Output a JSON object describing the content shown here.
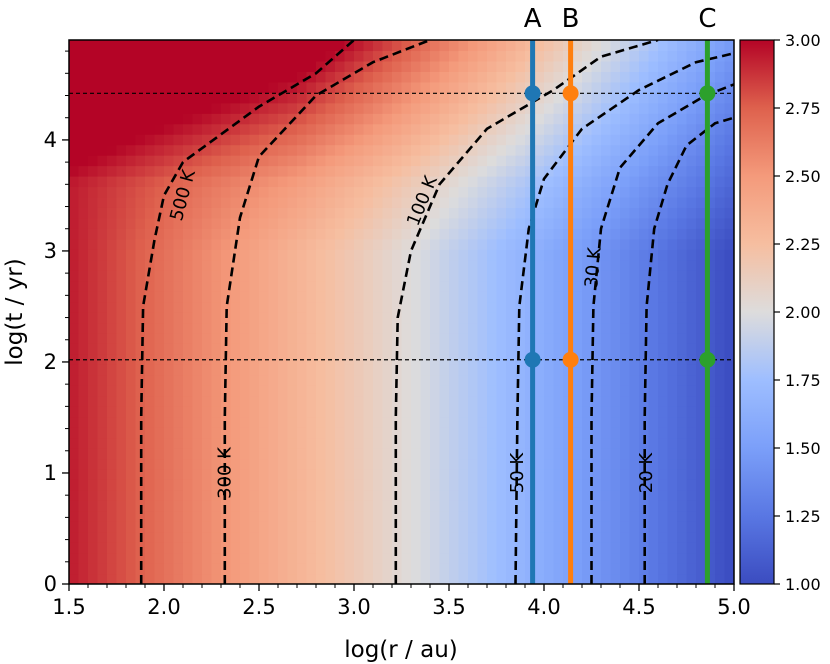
{
  "chart_data": {
    "type": "heatmap",
    "xlabel": "log(r / au)",
    "ylabel": "log(t / yr)",
    "xlim": [
      1.5,
      5.0
    ],
    "ylim": [
      0,
      4.9
    ],
    "x_ticks": [
      "1.5",
      "2.0",
      "2.5",
      "3.0",
      "3.5",
      "4.0",
      "4.5",
      "5.0"
    ],
    "y_ticks": [
      "0",
      "1",
      "2",
      "3",
      "4"
    ],
    "colorbar": {
      "colormap": "coolwarm",
      "range": [
        1.0,
        3.0
      ],
      "ticks": [
        "1.00",
        "1.25",
        "1.50",
        "1.75",
        "2.00",
        "2.25",
        "2.50",
        "2.75",
        "3.00"
      ]
    },
    "contours": [
      {
        "label": "500 K",
        "points": [
          [
            1.88,
            0
          ],
          [
            1.88,
            1.5
          ],
          [
            1.89,
            2.5
          ],
          [
            1.95,
            3.1
          ],
          [
            2.0,
            3.5
          ],
          [
            2.1,
            3.8
          ],
          [
            2.5,
            4.3
          ],
          [
            2.8,
            4.6
          ],
          [
            3.0,
            4.9
          ]
        ]
      },
      {
        "label": "300 K",
        "points": [
          [
            2.32,
            0
          ],
          [
            2.32,
            1.5
          ],
          [
            2.33,
            2.5
          ],
          [
            2.4,
            3.3
          ],
          [
            2.5,
            3.85
          ],
          [
            2.8,
            4.4
          ],
          [
            3.1,
            4.7
          ],
          [
            3.4,
            4.9
          ]
        ]
      },
      {
        "label": "100 K",
        "points": [
          [
            3.22,
            0
          ],
          [
            3.22,
            1.5
          ],
          [
            3.23,
            2.4
          ],
          [
            3.3,
            3.0
          ],
          [
            3.45,
            3.6
          ],
          [
            3.7,
            4.1
          ],
          [
            4.05,
            4.45
          ],
          [
            4.3,
            4.75
          ],
          [
            4.6,
            4.9
          ]
        ]
      },
      {
        "label": "50 K",
        "points": [
          [
            3.85,
            0
          ],
          [
            3.86,
            1.5
          ],
          [
            3.87,
            2.5
          ],
          [
            3.92,
            3.2
          ],
          [
            4.0,
            3.65
          ],
          [
            4.2,
            4.1
          ],
          [
            4.5,
            4.45
          ],
          [
            4.8,
            4.7
          ],
          [
            5.0,
            4.78
          ]
        ]
      },
      {
        "label": "30 K",
        "points": [
          [
            4.25,
            0
          ],
          [
            4.25,
            1.5
          ],
          [
            4.26,
            2.5
          ],
          [
            4.3,
            3.2
          ],
          [
            4.4,
            3.75
          ],
          [
            4.6,
            4.15
          ],
          [
            4.85,
            4.4
          ],
          [
            5.0,
            4.5
          ]
        ]
      },
      {
        "label": "20 K",
        "points": [
          [
            4.53,
            0
          ],
          [
            4.53,
            1.5
          ],
          [
            4.54,
            2.5
          ],
          [
            4.58,
            3.2
          ],
          [
            4.65,
            3.6
          ],
          [
            4.75,
            3.95
          ],
          [
            4.9,
            4.15
          ],
          [
            5.0,
            4.2
          ]
        ]
      }
    ],
    "horizontal_lines": [
      2.02,
      4.42
    ],
    "vertical_lines": [
      {
        "label": "A",
        "x": 3.94,
        "color": "#1f77b4",
        "markers_y": [
          2.02,
          4.42
        ]
      },
      {
        "label": "B",
        "x": 4.14,
        "color": "#ff7f0e",
        "markers_y": [
          2.02,
          4.42
        ]
      },
      {
        "label": "C",
        "x": 4.86,
        "color": "#2ca02c",
        "markers_y": [
          2.02,
          4.42
        ]
      }
    ]
  }
}
